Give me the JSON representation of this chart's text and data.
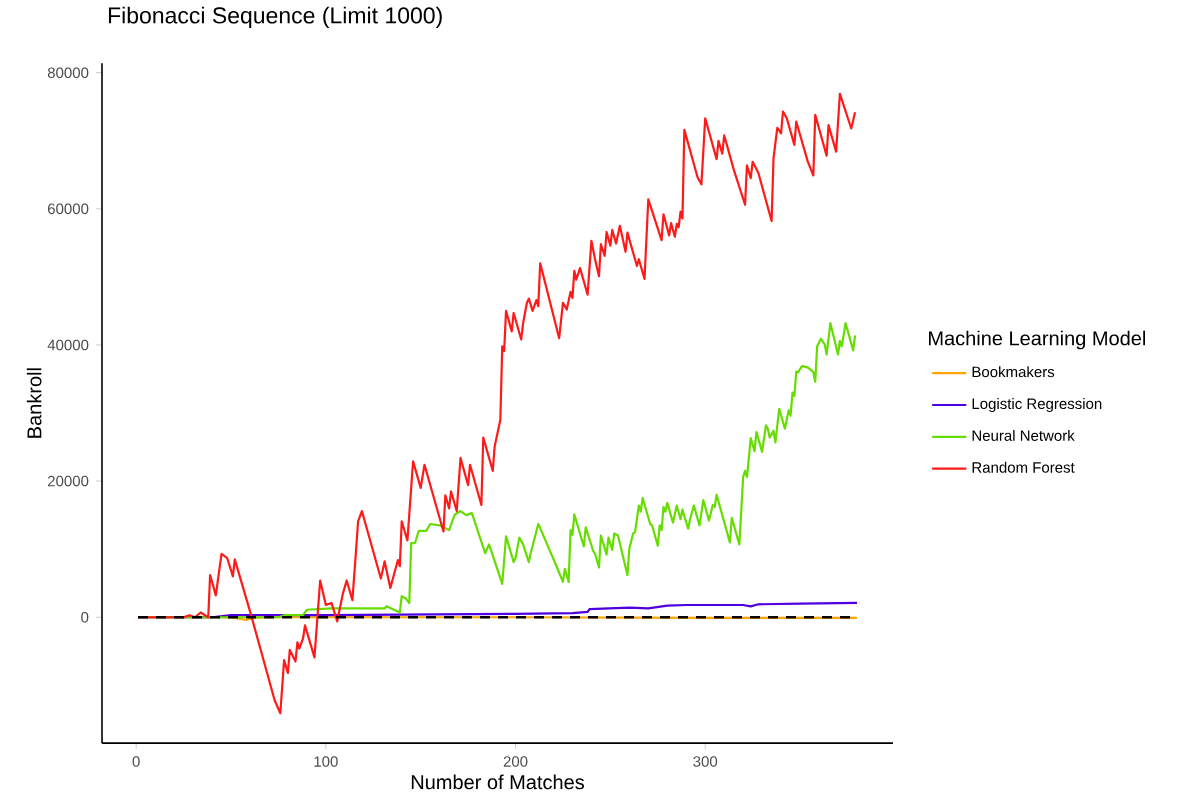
{
  "chart_data": {
    "type": "line",
    "title": "Fibonacci Sequence (Limit 1000)",
    "xlabel": "Number of Matches",
    "ylabel": "Bankroll",
    "legend_title": "Machine Learning Model",
    "legend": "right",
    "grid": false,
    "xlim": [
      -18,
      399
    ],
    "ylim": [
      -18500,
      81400
    ],
    "xticks": [
      0,
      100,
      200,
      300
    ],
    "yticks": [
      0,
      20000,
      40000,
      60000,
      80000
    ],
    "ref_lines": [
      {
        "axis": "y",
        "value": 0,
        "color": "#000000",
        "line_style": "dashed"
      }
    ],
    "series": [
      {
        "name": "Bookmakers",
        "color": "#ffa500",
        "x": [
          1,
          45,
          52,
          58,
          62,
          70,
          200,
          300,
          380
        ],
        "values": [
          0,
          0,
          -100,
          -400,
          -100,
          0,
          0,
          -100,
          -100
        ]
      },
      {
        "name": "Logistic Regression",
        "color": "#5000e0",
        "x": [
          1,
          40,
          50,
          100,
          150,
          200,
          230,
          238,
          239,
          260,
          270,
          280,
          290,
          320,
          324,
          328,
          350,
          380
        ],
        "values": [
          0,
          0,
          300,
          300,
          400,
          500,
          600,
          800,
          1200,
          1400,
          1300,
          1700,
          1800,
          1800,
          1600,
          1900,
          2000,
          2100
        ]
      },
      {
        "name": "Neural Network",
        "color": "#66dd00",
        "x": [
          1,
          75,
          78,
          88,
          90,
          103,
          131,
          132,
          139,
          140,
          142,
          144,
          145,
          147,
          149,
          153,
          155,
          160,
          165,
          168,
          171,
          174,
          177,
          184,
          186,
          187,
          193,
          195,
          199,
          200,
          202,
          204,
          207,
          208,
          212,
          213,
          221,
          225,
          226,
          228,
          229,
          230,
          231,
          236,
          237,
          241,
          242,
          244,
          245,
          248,
          249,
          251,
          252,
          254,
          259,
          260,
          262,
          263,
          265,
          266,
          267,
          271,
          272,
          275,
          276,
          277,
          278,
          279,
          280,
          283,
          285,
          287,
          288,
          291,
          292,
          294,
          297,
          299,
          302,
          304,
          305,
          306,
          313,
          314,
          318,
          320,
          321,
          322,
          324,
          326,
          327,
          330,
          332,
          333,
          334,
          336,
          337,
          339,
          342,
          344,
          345,
          346,
          347,
          348,
          349,
          351,
          354,
          357,
          358,
          359,
          361,
          363,
          364,
          366,
          370,
          371,
          372,
          374,
          378,
          379
        ],
        "values": [
          0,
          0,
          300,
          300,
          1100,
          1300,
          1300,
          1600,
          700,
          3100,
          2800,
          2100,
          10900,
          10900,
          12700,
          12700,
          13700,
          13500,
          12800,
          15100,
          15600,
          15000,
          15300,
          9400,
          10700,
          9900,
          4900,
          11900,
          8100,
          8700,
          11700,
          10700,
          8100,
          9400,
          13700,
          13100,
          7900,
          5200,
          7100,
          5200,
          12800,
          12100,
          15100,
          10400,
          13200,
          9700,
          9300,
          7300,
          12000,
          9200,
          11700,
          9900,
          12300,
          12000,
          6200,
          10100,
          12300,
          12500,
          16400,
          15500,
          17500,
          13700,
          13500,
          10500,
          13500,
          12800,
          16200,
          15500,
          16800,
          13900,
          16400,
          14400,
          15800,
          13000,
          14400,
          16400,
          13500,
          17200,
          14200,
          16500,
          16200,
          18000,
          11000,
          14600,
          10700,
          20600,
          21500,
          20600,
          26300,
          24400,
          27200,
          24300,
          28200,
          27700,
          26400,
          27400,
          25700,
          30600,
          27700,
          30400,
          29600,
          33000,
          32500,
          36100,
          36000,
          36900,
          36700,
          36000,
          34600,
          39800,
          40900,
          40100,
          38600,
          43200,
          38600,
          40600,
          39800,
          43200,
          39200,
          41400
        ]
      },
      {
        "name": "Random Forest",
        "color": "#ff1a1a",
        "x": [
          1,
          25,
          28,
          31,
          34,
          38,
          39,
          42,
          45,
          48,
          51,
          52,
          60,
          73,
          76,
          78,
          80,
          81,
          84,
          85,
          86,
          88,
          89,
          94,
          97,
          100,
          103,
          106,
          109,
          111,
          114,
          116,
          117,
          119,
          129,
          131,
          134,
          138,
          139,
          140,
          143,
          146,
          150,
          152,
          162,
          163,
          165,
          166,
          169,
          171,
          175,
          176,
          182,
          183,
          188,
          189,
          192,
          193,
          194,
          195,
          198,
          199,
          203,
          204,
          206,
          207,
          209,
          211,
          212,
          213,
          223,
          225,
          227,
          229,
          230,
          231,
          232,
          234,
          238,
          240,
          242,
          244,
          245,
          247,
          248,
          250,
          251,
          253,
          255,
          258,
          259,
          264,
          265,
          268,
          270,
          277,
          278,
          281,
          282,
          284,
          285,
          286,
          287,
          288,
          289,
          296,
          298,
          300,
          306,
          307,
          309,
          310,
          315,
          321,
          322,
          324,
          325,
          328,
          335,
          336,
          338,
          340,
          341,
          343,
          347,
          348,
          354,
          357,
          358,
          364,
          365,
          369,
          371,
          377,
          379
        ],
        "values": [
          0,
          0,
          300,
          0,
          700,
          0,
          6200,
          3200,
          9300,
          8700,
          6000,
          8500,
          900,
          -12200,
          -14100,
          -6300,
          -8200,
          -4800,
          -6500,
          -3700,
          -4600,
          -3100,
          -1200,
          -5900,
          5400,
          1800,
          2100,
          -600,
          3500,
          5400,
          2500,
          10100,
          14100,
          15600,
          5700,
          8200,
          4300,
          8400,
          7500,
          14100,
          11300,
          22900,
          19000,
          22400,
          12600,
          17900,
          16000,
          18500,
          15600,
          23400,
          19400,
          22400,
          16500,
          26400,
          21500,
          25100,
          29000,
          39800,
          39100,
          45000,
          42000,
          44700,
          40800,
          43200,
          46200,
          46800,
          45000,
          46600,
          45700,
          52000,
          41000,
          46200,
          45200,
          47800,
          46900,
          50900,
          49600,
          51300,
          47400,
          55300,
          52500,
          50100,
          54800,
          53100,
          56600,
          54600,
          56900,
          54900,
          57500,
          53700,
          56500,
          51600,
          52600,
          49700,
          61400,
          55400,
          59200,
          56100,
          57900,
          55900,
          57800,
          57300,
          59600,
          58600,
          71600,
          64600,
          63600,
          73300,
          67300,
          70000,
          68100,
          70800,
          65800,
          60600,
          66400,
          64500,
          66900,
          65300,
          58200,
          67400,
          71900,
          71100,
          74300,
          73300,
          69400,
          72800,
          67000,
          64900,
          73800,
          67800,
          72300,
          68400,
          76900,
          71800,
          74200
        ]
      }
    ]
  }
}
